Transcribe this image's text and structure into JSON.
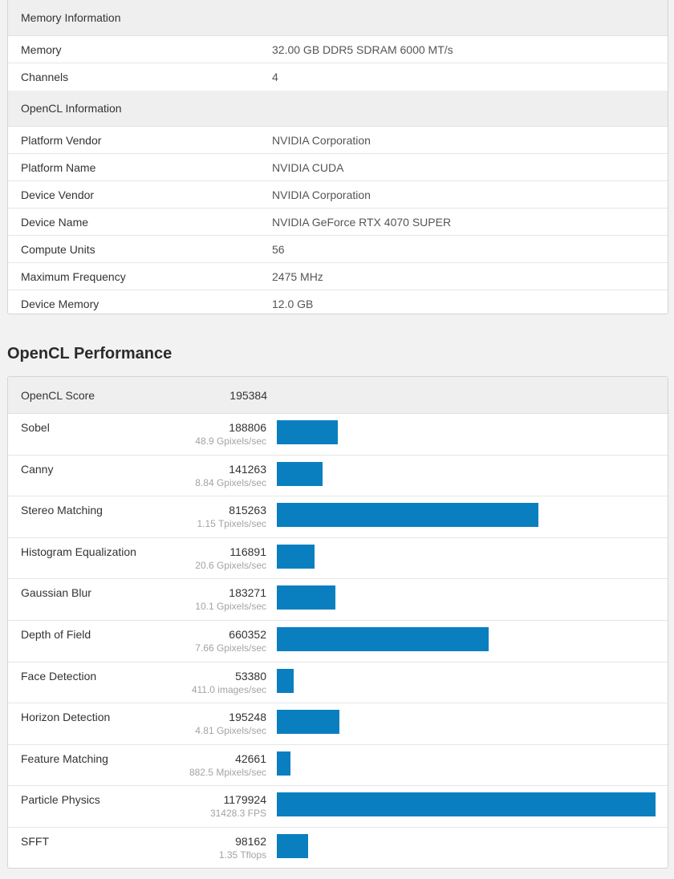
{
  "memory_info": {
    "header": "Memory Information",
    "rows": [
      {
        "label": "Memory",
        "value": "32.00 GB DDR5 SDRAM 6000 MT/s"
      },
      {
        "label": "Channels",
        "value": "4"
      }
    ]
  },
  "opencl_info": {
    "header": "OpenCL Information",
    "rows": [
      {
        "label": "Platform Vendor",
        "value": "NVIDIA Corporation"
      },
      {
        "label": "Platform Name",
        "value": "NVIDIA CUDA"
      },
      {
        "label": "Device Vendor",
        "value": "NVIDIA Corporation"
      },
      {
        "label": "Device Name",
        "value": "NVIDIA GeForce RTX 4070 SUPER"
      },
      {
        "label": "Compute Units",
        "value": "56"
      },
      {
        "label": "Maximum Frequency",
        "value": "2475 MHz"
      },
      {
        "label": "Device Memory",
        "value": "12.0 GB"
      }
    ]
  },
  "performance": {
    "title": "OpenCL Performance",
    "score_label": "OpenCL Score",
    "score_value": "195384",
    "bar_color": "#0a7fc0",
    "max_score": 1179924,
    "tests": [
      {
        "name": "Sobel",
        "score": 188806,
        "score_text": "188806",
        "throughput": "48.9 Gpixels/sec"
      },
      {
        "name": "Canny",
        "score": 141263,
        "score_text": "141263",
        "throughput": "8.84 Gpixels/sec"
      },
      {
        "name": "Stereo Matching",
        "score": 815263,
        "score_text": "815263",
        "throughput": "1.15 Tpixels/sec"
      },
      {
        "name": "Histogram Equalization",
        "score": 116891,
        "score_text": "116891",
        "throughput": "20.6 Gpixels/sec"
      },
      {
        "name": "Gaussian Blur",
        "score": 183271,
        "score_text": "183271",
        "throughput": "10.1 Gpixels/sec"
      },
      {
        "name": "Depth of Field",
        "score": 660352,
        "score_text": "660352",
        "throughput": "7.66 Gpixels/sec"
      },
      {
        "name": "Face Detection",
        "score": 53380,
        "score_text": "53380",
        "throughput": "411.0 images/sec"
      },
      {
        "name": "Horizon Detection",
        "score": 195248,
        "score_text": "195248",
        "throughput": "4.81 Gpixels/sec"
      },
      {
        "name": "Feature Matching",
        "score": 42661,
        "score_text": "42661",
        "throughput": "882.5 Mpixels/sec"
      },
      {
        "name": "Particle Physics",
        "score": 1179924,
        "score_text": "1179924",
        "throughput": "31428.3 FPS"
      },
      {
        "name": "SFFT",
        "score": 98162,
        "score_text": "98162",
        "throughput": "1.35 Tflops"
      }
    ]
  }
}
